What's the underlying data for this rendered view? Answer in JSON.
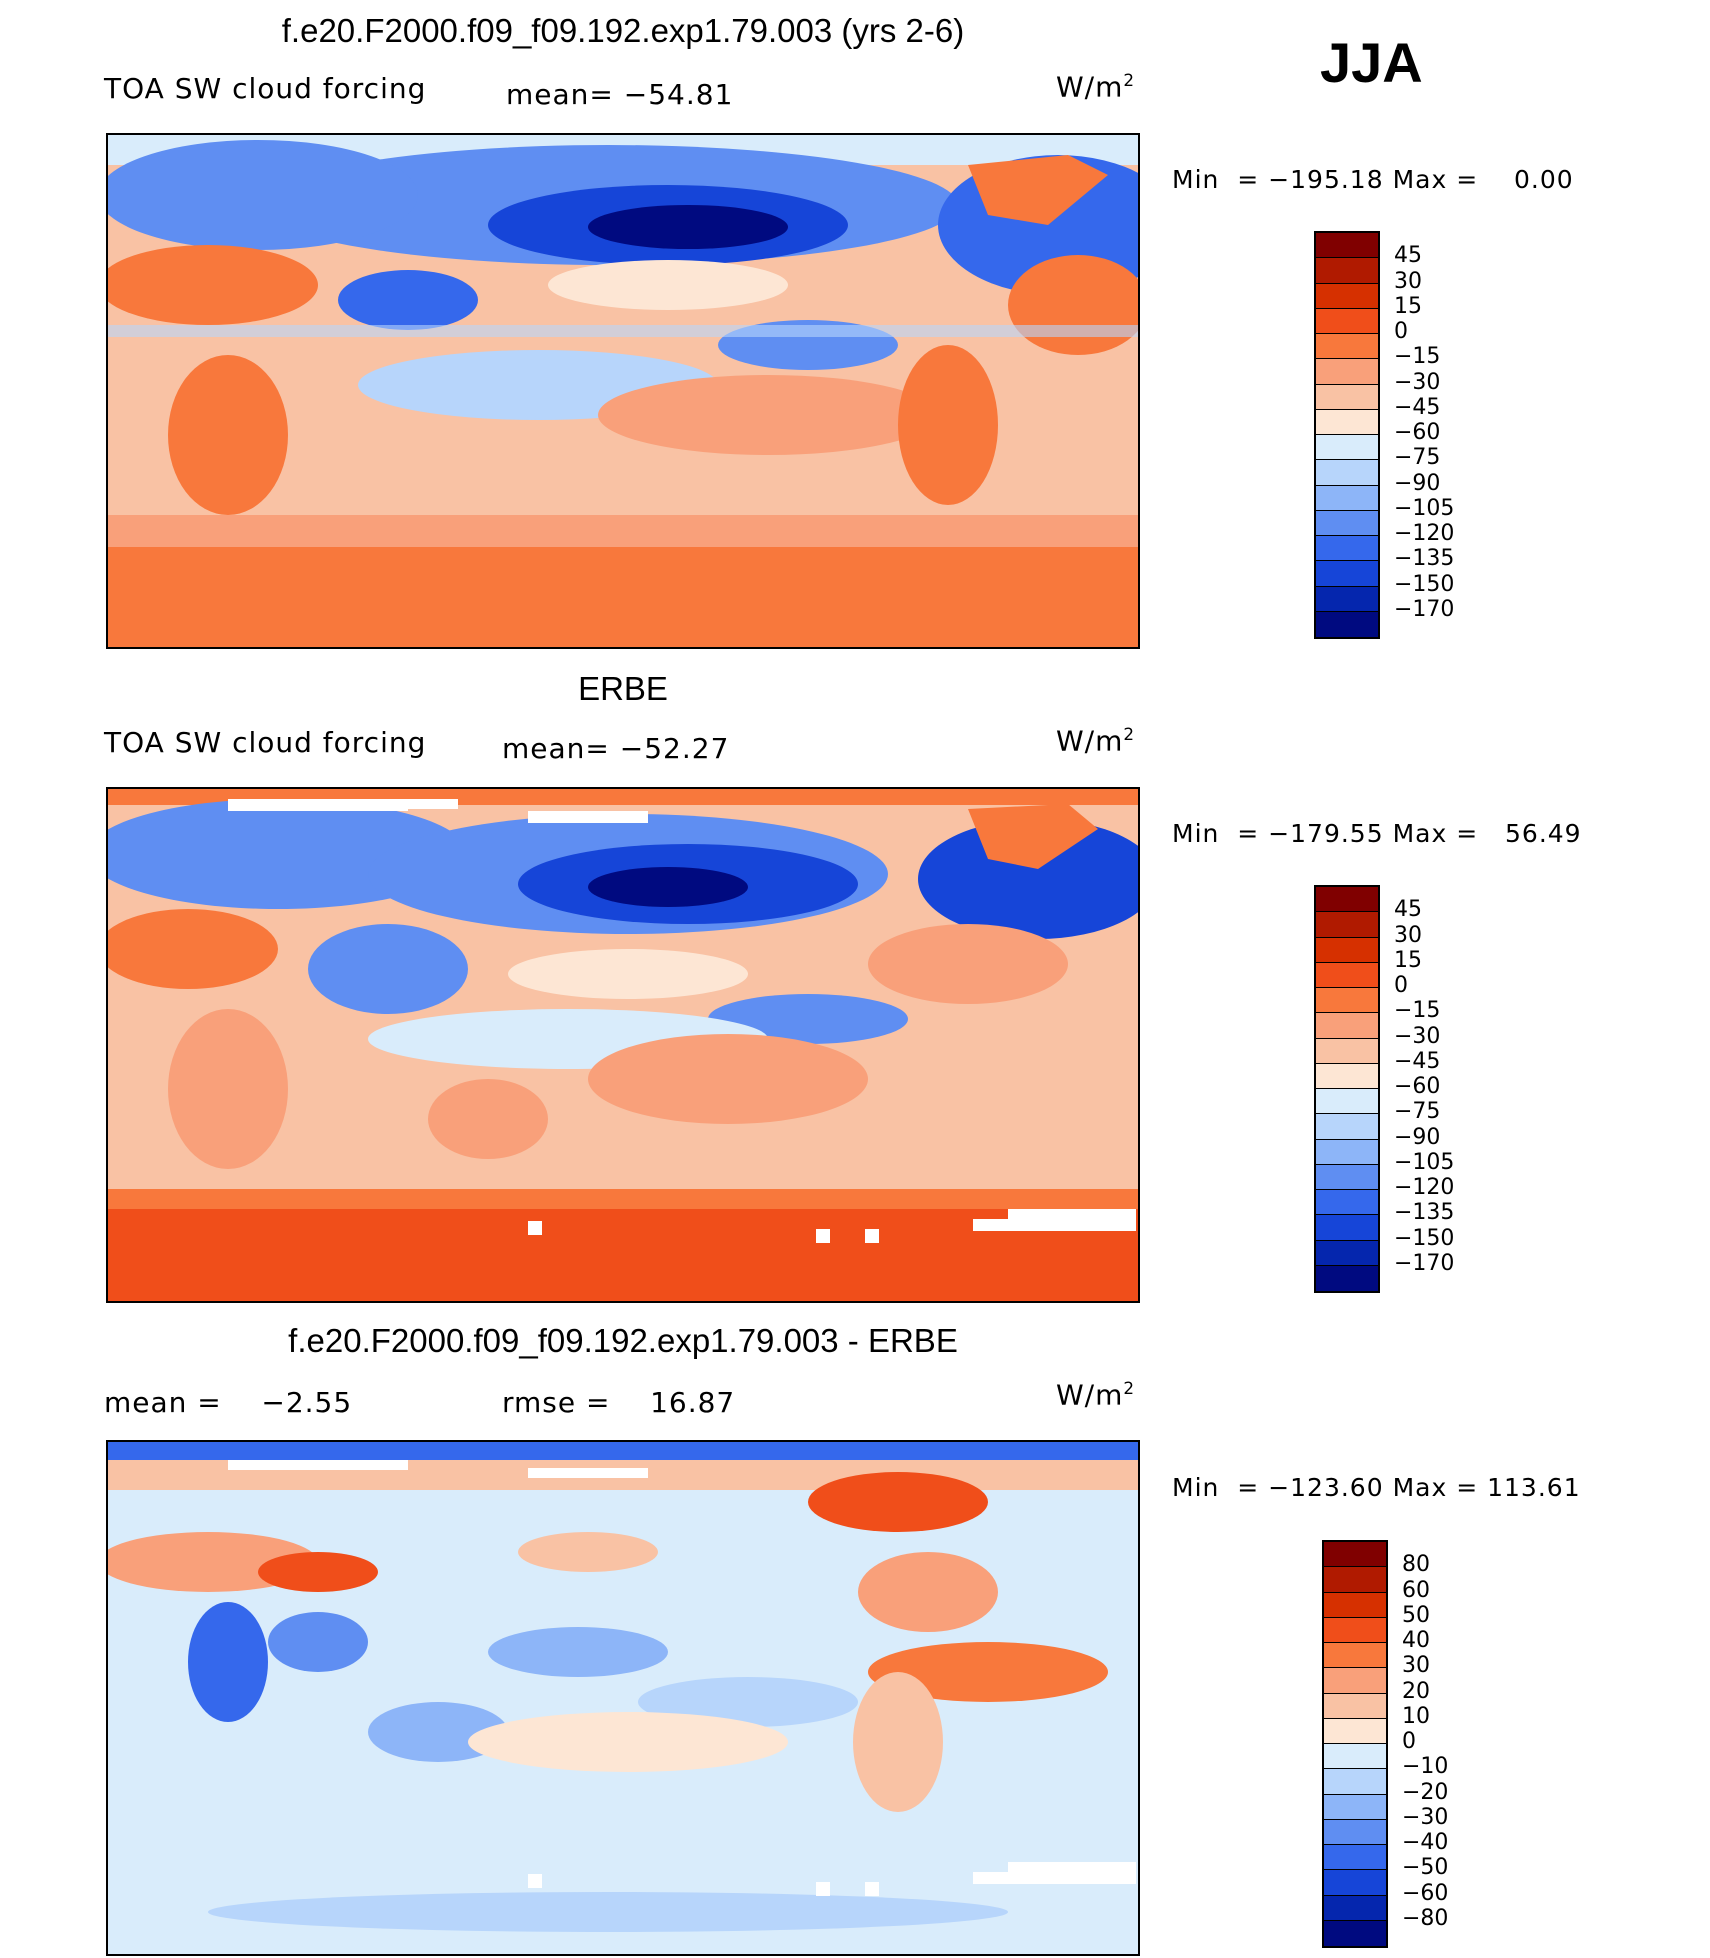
{
  "season": "JJA",
  "units_prefix": "W/m",
  "units_sup": "2",
  "chart_data": [
    {
      "type": "heatmap",
      "title": "f.e20.F2000.f09_f09.192.exp1.79.003 (yrs 2-6)",
      "left_label": "TOA SW cloud forcing",
      "center_label": "mean= −54.81",
      "mean": -54.81,
      "min": -195.18,
      "max": 0.0,
      "minmax_text": {
        "min_label": "Min",
        "eq": "=",
        "min_value": "−195.18",
        "max_label": "Max",
        "max_value": "0.00"
      },
      "levels": [
        "45",
        "30",
        "15",
        "0",
        "−15",
        "−30",
        "−45",
        "−60",
        "−75",
        "−90",
        "−105",
        "−120",
        "−135",
        "−150",
        "−170"
      ],
      "colors": [
        "#800000",
        "#b01a00",
        "#d63000",
        "#f04e1a",
        "#f8783c",
        "#f9a07a",
        "#f9c2a4",
        "#fde6d4",
        "#d9ecfb",
        "#b7d5fb",
        "#8db5f8",
        "#5f8ef2",
        "#3568ec",
        "#1645d8",
        "#0526ae",
        "#000a80"
      ]
    },
    {
      "type": "heatmap",
      "title": "ERBE",
      "left_label": "TOA SW cloud forcing",
      "center_label": "mean= −52.27",
      "mean": -52.27,
      "min": -179.55,
      "max": 56.49,
      "minmax_text": {
        "min_label": "Min",
        "eq": "=",
        "min_value": "−179.55",
        "max_label": "Max",
        "max_value": "56.49"
      },
      "levels": [
        "45",
        "30",
        "15",
        "0",
        "−15",
        "−30",
        "−45",
        "−60",
        "−75",
        "−90",
        "−105",
        "−120",
        "−135",
        "−150",
        "−170"
      ],
      "colors": [
        "#800000",
        "#b01a00",
        "#d63000",
        "#f04e1a",
        "#f8783c",
        "#f9a07a",
        "#f9c2a4",
        "#fde6d4",
        "#d9ecfb",
        "#b7d5fb",
        "#8db5f8",
        "#5f8ef2",
        "#3568ec",
        "#1645d8",
        "#0526ae",
        "#000a80"
      ]
    },
    {
      "type": "heatmap",
      "title": "f.e20.F2000.f09_f09.192.exp1.79.003 - ERBE",
      "left_label": "mean =    −2.55",
      "center_label": "rmse =    16.87",
      "mean": -2.55,
      "rmse": 16.87,
      "min": -123.6,
      "max": 113.61,
      "minmax_text": {
        "min_label": "Min",
        "eq": "=",
        "min_value": "−123.60",
        "max_label": "Max",
        "max_value": "113.61"
      },
      "levels": [
        "80",
        "60",
        "50",
        "40",
        "30",
        "20",
        "10",
        "0",
        "−10",
        "−20",
        "−30",
        "−40",
        "−50",
        "−60",
        "−80"
      ],
      "colors": [
        "#800000",
        "#b01a00",
        "#d63000",
        "#f04e1a",
        "#f8783c",
        "#f9a07a",
        "#f9c2a4",
        "#fde6d4",
        "#d9ecfb",
        "#b7d5fb",
        "#8db5f8",
        "#5f8ef2",
        "#3568ec",
        "#1645d8",
        "#0526ae",
        "#000a80"
      ]
    }
  ]
}
